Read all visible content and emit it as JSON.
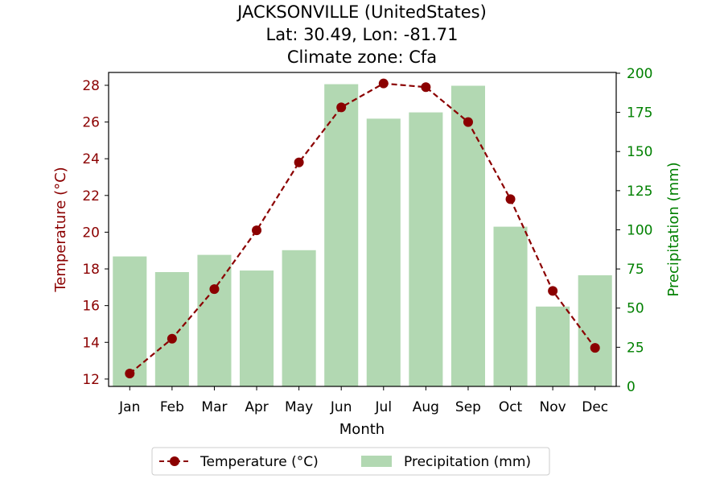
{
  "chart_data": {
    "type": "bar",
    "title_lines": [
      "JACKSONVILLE (UnitedStates)",
      "Lat: 30.49, Lon: -81.71",
      "Climate zone: Cfa"
    ],
    "xlabel": "Month",
    "categories": [
      "Jan",
      "Feb",
      "Mar",
      "Apr",
      "May",
      "Jun",
      "Jul",
      "Aug",
      "Sep",
      "Oct",
      "Nov",
      "Dec"
    ],
    "temperature": {
      "name": "Temperature (°C)",
      "axis_label": "Temperature (°C)",
      "values": [
        12.3,
        14.2,
        16.9,
        20.1,
        23.8,
        26.8,
        28.1,
        27.9,
        26.0,
        21.8,
        16.8,
        13.7
      ],
      "ylim": [
        11.6,
        28.7
      ],
      "ticks": [
        12,
        14,
        16,
        18,
        20,
        22,
        24,
        26,
        28
      ],
      "color": "#8b0000"
    },
    "precipitation": {
      "name": "Precipitation (mm)",
      "axis_label": "Precipitation (mm)",
      "values": [
        83,
        73,
        84,
        74,
        87,
        193,
        171,
        175,
        192,
        102,
        51,
        71
      ],
      "ylim": [
        0,
        200.5
      ],
      "ticks": [
        0,
        25,
        50,
        75,
        100,
        125,
        150,
        175,
        200
      ],
      "color": "#b2d8b2",
      "axis_color": "#008000"
    },
    "legend": {
      "placement": "bottom-center",
      "entries": [
        "Temperature (°C)",
        "Precipitation (mm)"
      ]
    }
  }
}
